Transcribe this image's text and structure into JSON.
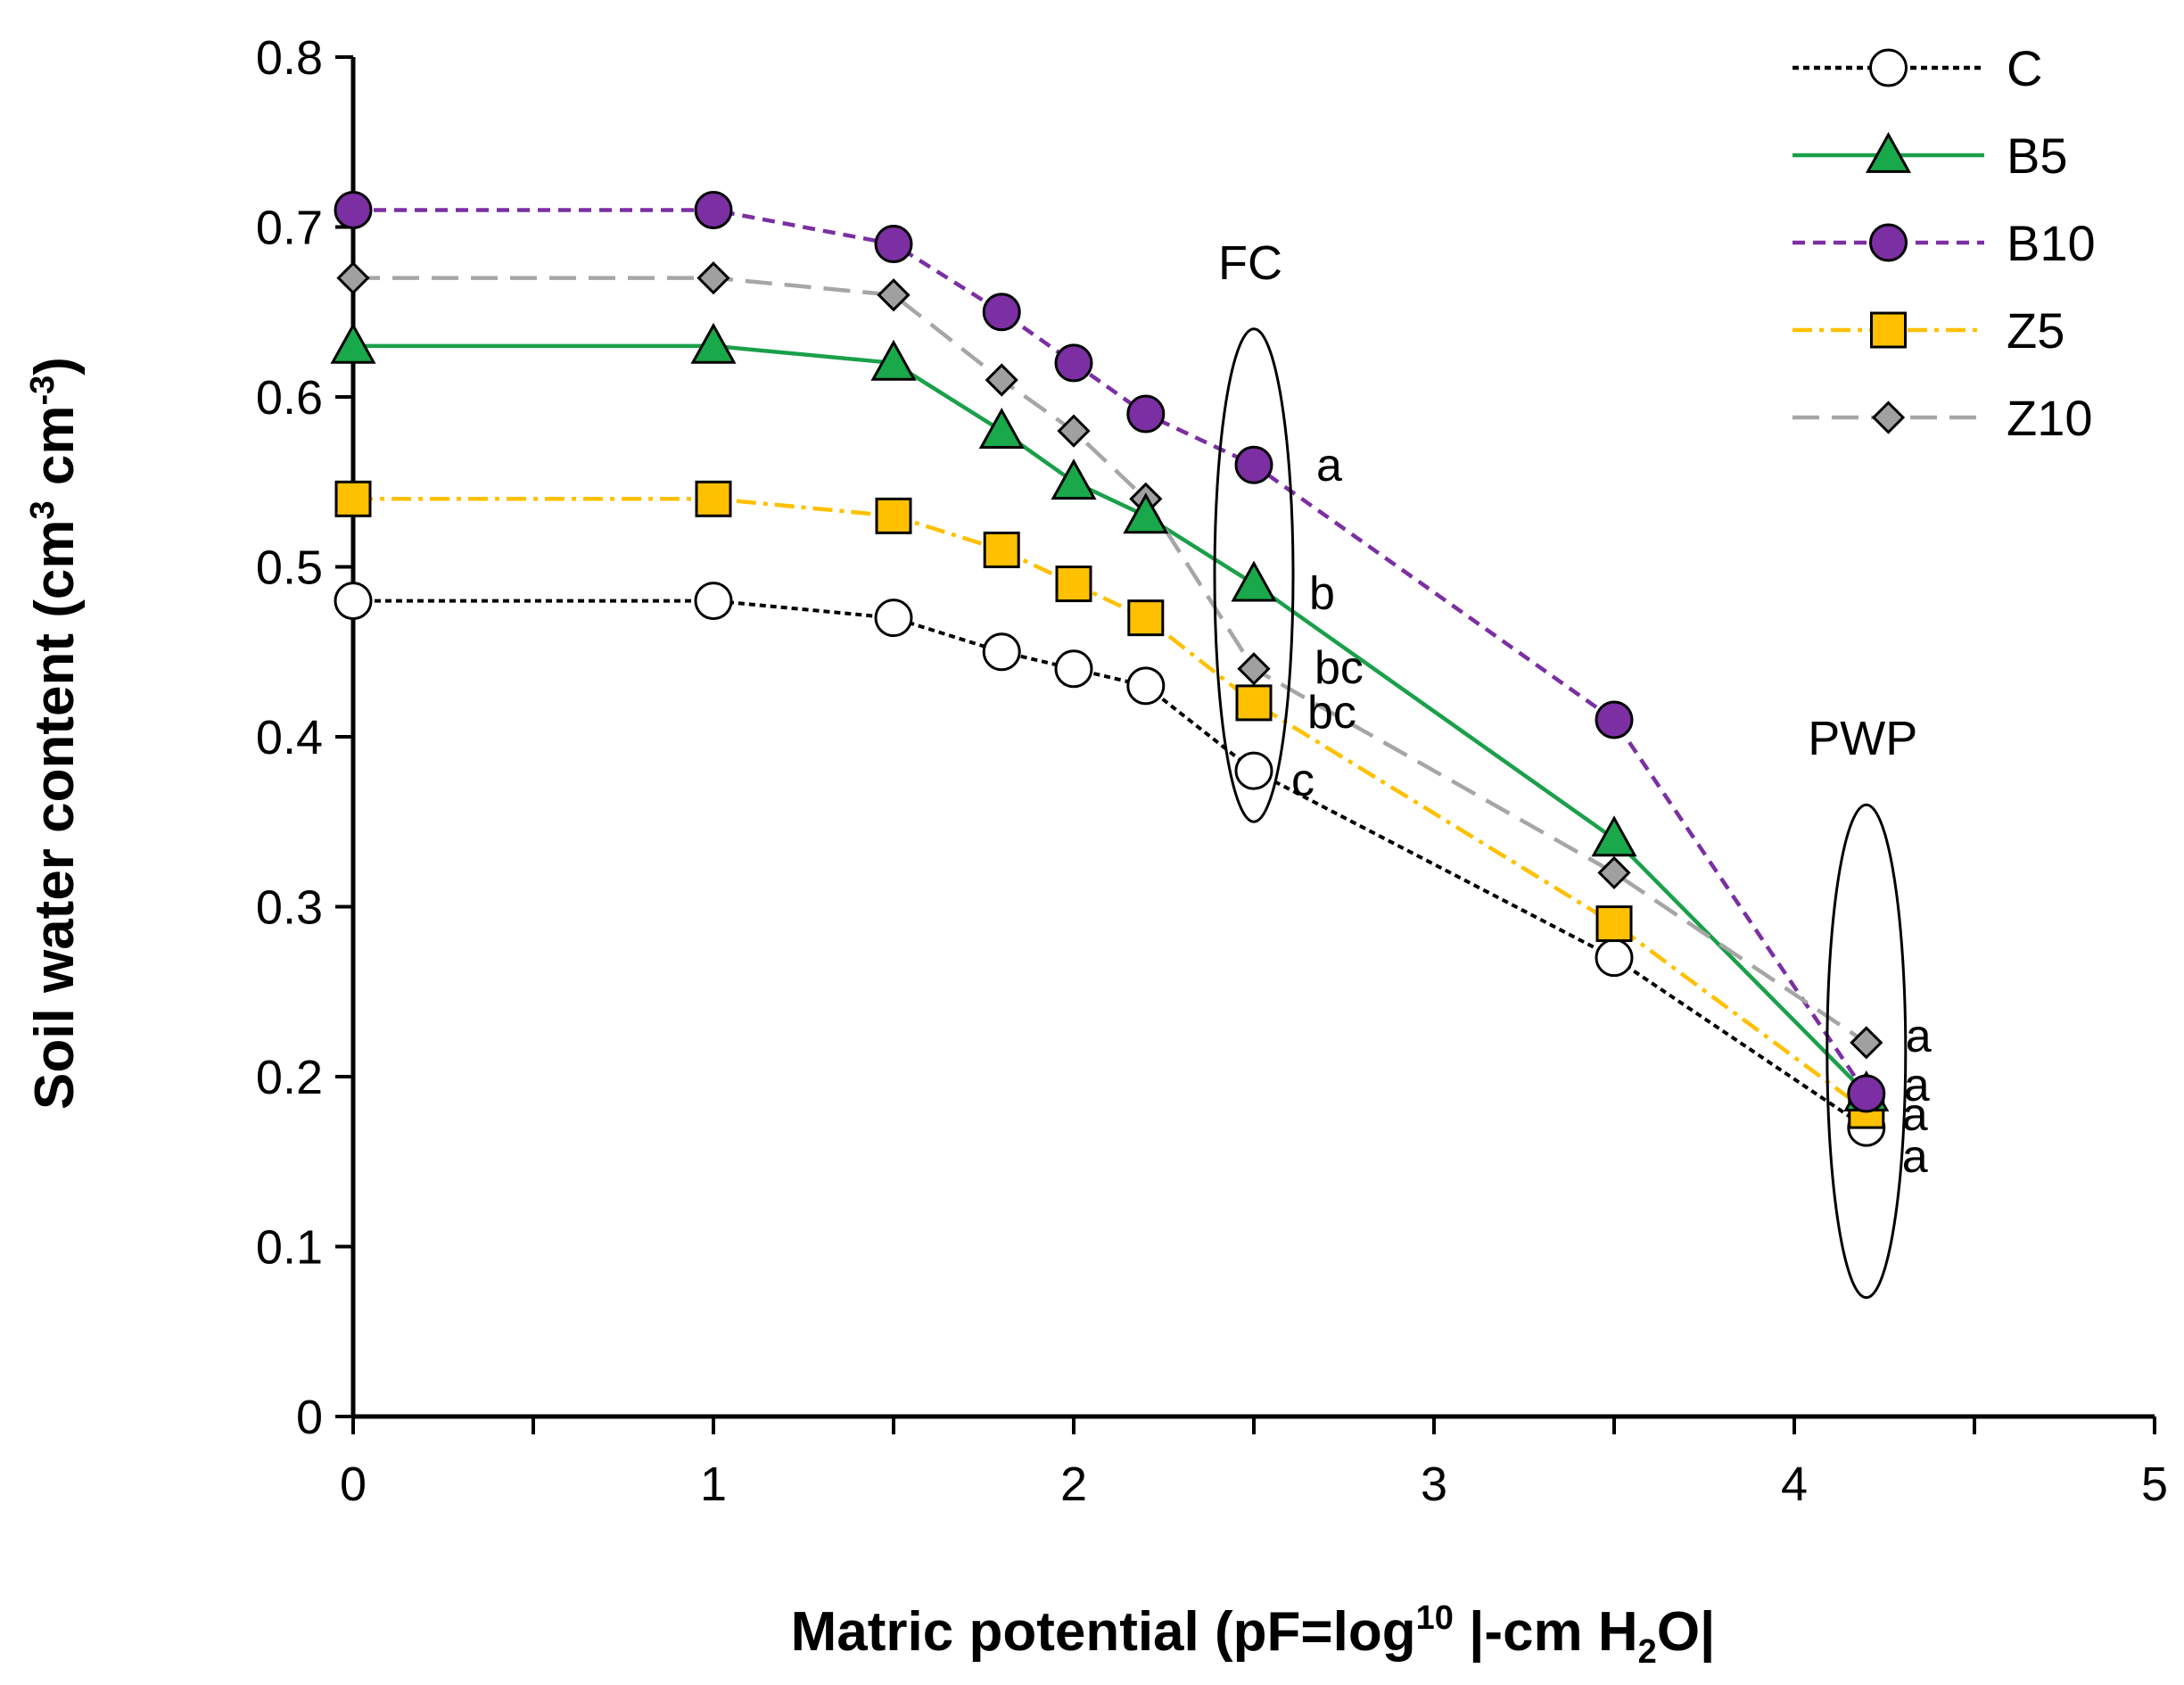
{
  "chart_data": {
    "type": "line",
    "title": "",
    "xlabel": {
      "main": "Matric potential (pF=log",
      "sup": "10",
      "mid": " |-cm H",
      "sub": "2",
      "end": "O|"
    },
    "ylabel": {
      "main": "Soil water content (cm",
      "sup1": "3",
      "mid": " cm",
      "sup2": "-3",
      "end": ")"
    },
    "xlim": [
      0,
      5
    ],
    "ylim": [
      0,
      0.8
    ],
    "xticks": [
      "0",
      "1",
      "2",
      "3",
      "4",
      "5"
    ],
    "yticks": [
      "0",
      "0.1",
      "0.2",
      "0.3",
      "0.4",
      "0.5",
      "0.6",
      "0.7",
      "0.8"
    ],
    "grid": false,
    "legend_position": "top-right",
    "x": [
      0,
      1,
      1.5,
      1.8,
      2,
      2.2,
      2.5,
      3.5,
      4.2
    ],
    "series": [
      {
        "name": "C",
        "values": [
          0.48,
          0.48,
          0.47,
          0.45,
          0.44,
          0.43,
          0.38,
          0.27,
          0.17
        ],
        "color": "#000000",
        "marker": "circle",
        "marker_fill": "#ffffff",
        "dash": "dotted"
      },
      {
        "name": "B5",
        "values": [
          0.63,
          0.63,
          0.62,
          0.58,
          0.55,
          0.53,
          0.49,
          0.34,
          0.19
        ],
        "color": "#1aa04a",
        "marker": "triangle",
        "marker_fill": "#19a84a",
        "dash": "solid"
      },
      {
        "name": "B10",
        "values": [
          0.71,
          0.71,
          0.69,
          0.65,
          0.62,
          0.59,
          0.56,
          0.41,
          0.19
        ],
        "color": "#7b2fa3",
        "marker": "circle",
        "marker_fill": "#7b2fa3",
        "dash": "dashed"
      },
      {
        "name": "Z5",
        "values": [
          0.54,
          0.54,
          0.53,
          0.51,
          0.49,
          0.47,
          0.42,
          0.29,
          0.18
        ],
        "color": "#ffc000",
        "marker": "square",
        "marker_fill": "#ffc000",
        "dash": "dashdot"
      },
      {
        "name": "Z10",
        "values": [
          0.67,
          0.67,
          0.66,
          0.61,
          0.58,
          0.54,
          0.44,
          0.32,
          0.22
        ],
        "color": "#a6a6a6",
        "marker": "diamond",
        "marker_fill": "#a0a0a0",
        "dash": "longdash"
      }
    ],
    "annotations": {
      "fc": {
        "label": "FC",
        "x": 2.5,
        "ymin": 0.35,
        "ymax": 0.64
      },
      "pwp": {
        "label": "PWP",
        "x": 4.2,
        "ymin": 0.07,
        "ymax": 0.36
      }
    },
    "significance": {
      "fc": [
        {
          "series": "B10",
          "text": "a"
        },
        {
          "series": "B5",
          "text": "b"
        },
        {
          "series": "Z10",
          "text": "bc"
        },
        {
          "series": "Z5",
          "text": "bc"
        },
        {
          "series": "C",
          "text": "c"
        }
      ],
      "pwp": [
        {
          "series": "Z10",
          "text": "a"
        },
        {
          "series": "B10",
          "text": "a"
        },
        {
          "series": "Z5",
          "text": "a"
        },
        {
          "series": "C",
          "text": "a"
        }
      ]
    }
  }
}
